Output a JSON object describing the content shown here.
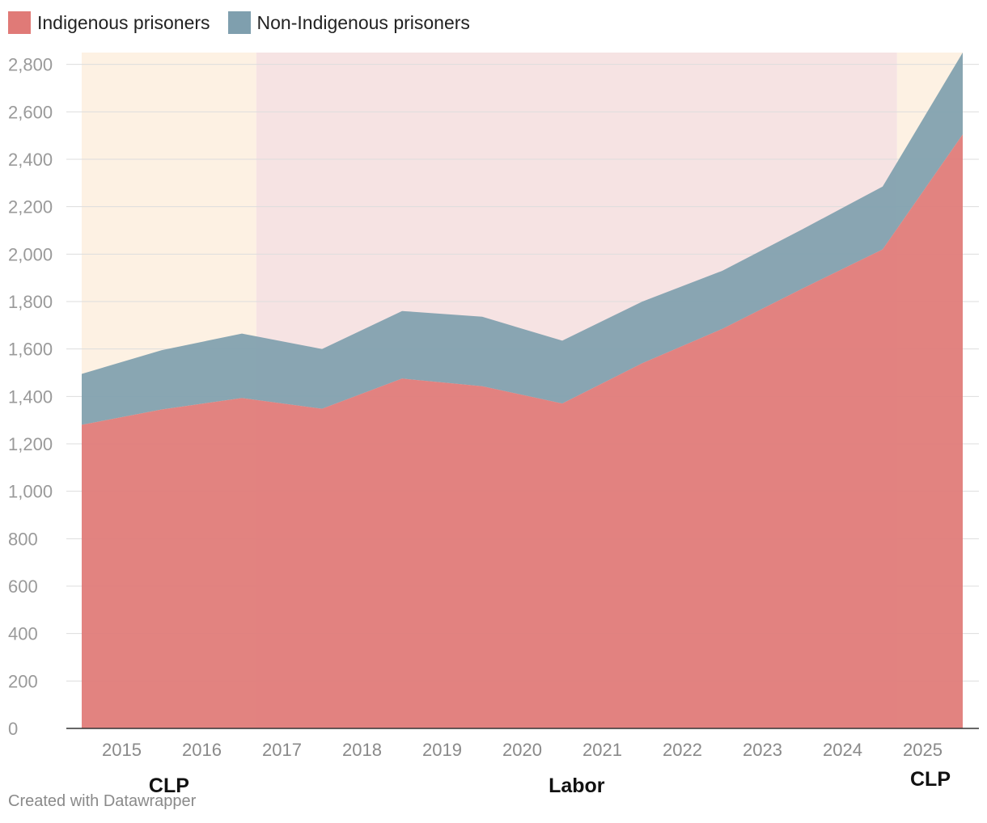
{
  "chart_data": {
    "type": "area",
    "stacked": true,
    "x": [
      2014.5,
      2015.5,
      2016.5,
      2017.5,
      2018.5,
      2019.5,
      2020.5,
      2021.5,
      2022.5,
      2023.5,
      2024.5,
      2025.5
    ],
    "series": [
      {
        "name": "Indigenous prisoners",
        "color": "#e07a77",
        "values": [
          1280,
          1345,
          1393,
          1348,
          1475,
          1443,
          1370,
          1540,
          1685,
          1855,
          2020,
          2505
        ]
      },
      {
        "name": "Non-Indigenous prisoners",
        "color": "#7f9fae",
        "values": [
          215,
          250,
          272,
          252,
          285,
          293,
          265,
          260,
          245,
          250,
          265,
          345
        ]
      }
    ],
    "x_tick_labels": [
      "2015",
      "2016",
      "2017",
      "2018",
      "2019",
      "2020",
      "2021",
      "2022",
      "2023",
      "2024",
      "2025"
    ],
    "y_ticks": [
      0,
      200,
      400,
      600,
      800,
      1000,
      1200,
      1400,
      1600,
      1800,
      2000,
      2200,
      2400,
      2600,
      2800
    ],
    "y_tick_labels": [
      "0",
      "200",
      "400",
      "600",
      "800",
      "1,000",
      "1,200",
      "1,400",
      "1,600",
      "1,800",
      "2,000",
      "2,200",
      "2,400",
      "2,600",
      "2,800"
    ],
    "ylim": [
      0,
      2850
    ],
    "xlim": [
      2014.5,
      2025.5
    ],
    "grid": true,
    "legend_position": "top-left",
    "government_periods": [
      {
        "label": "CLP",
        "start": 2014.5,
        "end": 2016.68,
        "color": "#fdf1e3"
      },
      {
        "label": "Labor",
        "start": 2016.68,
        "end": 2024.68,
        "color": "#f6e3e3"
      },
      {
        "label": "CLP",
        "start": 2024.68,
        "end": 2025.5,
        "color": "#fdf1e3"
      }
    ]
  },
  "legend": {
    "items": [
      {
        "label": "Indigenous prisoners",
        "color": "#e07a77"
      },
      {
        "label": "Non-Indigenous prisoners",
        "color": "#7f9fae"
      }
    ]
  },
  "footer": {
    "credit": "Created with Datawrapper"
  }
}
